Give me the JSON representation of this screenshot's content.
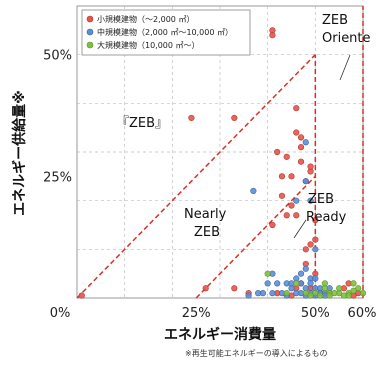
{
  "chart_data": {
    "type": "scatter",
    "xlabel": "エネルギー消費量",
    "ylabel": "エネルギー供給量※",
    "xlim": [
      0,
      60
    ],
    "ylim": [
      0,
      60
    ],
    "x_ticks": [
      {
        "value": 0,
        "label": "0%"
      },
      {
        "value": 25,
        "label": "25%"
      },
      {
        "value": 50,
        "label": "50%"
      },
      {
        "value": 60,
        "label": "60%"
      }
    ],
    "y_ticks": [
      {
        "value": 25,
        "label": "25%"
      },
      {
        "value": 50,
        "label": "50%"
      }
    ],
    "grid": true,
    "legend_position": "top-left",
    "zones": [
      {
        "label_lines": [
          "ZEB",
          "Oriente"
        ]
      },
      {
        "label_lines": [
          "『ZEB』"
        ]
      },
      {
        "label_lines": [
          "Nearly",
          "ZEB"
        ]
      },
      {
        "label_lines": [
          "ZEB",
          "Ready"
        ]
      }
    ],
    "series": [
      {
        "name": "小規模建物（〜2,000 ㎡）",
        "color": "#e8534a",
        "points": [
          [
            33,
            37
          ],
          [
            24,
            37
          ],
          [
            41,
            55
          ],
          [
            41,
            54
          ],
          [
            46,
            39
          ],
          [
            46,
            34
          ],
          [
            47,
            33
          ],
          [
            47,
            31
          ],
          [
            42,
            30
          ],
          [
            44,
            29
          ],
          [
            47,
            28
          ],
          [
            49,
            26
          ],
          [
            43,
            25
          ],
          [
            45,
            25
          ],
          [
            48,
            24
          ],
          [
            49,
            27
          ],
          [
            45,
            19
          ],
          [
            46,
            17
          ],
          [
            44,
            17
          ],
          [
            41,
            15
          ],
          [
            43,
            21
          ],
          [
            50,
            16
          ],
          [
            50,
            12
          ],
          [
            48,
            10
          ],
          [
            49,
            11
          ],
          [
            48,
            7
          ],
          [
            50,
            5
          ],
          [
            47,
            3
          ],
          [
            49,
            2
          ],
          [
            51,
            1
          ],
          [
            27,
            2
          ],
          [
            36,
            1
          ],
          [
            33,
            2
          ],
          [
            42,
            1
          ],
          [
            53,
            1
          ],
          [
            56,
            2
          ],
          [
            58,
            0.5
          ],
          [
            59,
            1
          ],
          [
            57,
            3
          ],
          [
            1,
            0.5
          ],
          [
            46,
            2
          ],
          [
            45,
            0.5
          ]
        ]
      },
      {
        "name": "中規模建物（2,000 ㎡〜10,000 ㎡）",
        "color": "#5b8ed6",
        "points": [
          [
            37,
            22
          ],
          [
            48,
            24
          ],
          [
            46,
            20
          ],
          [
            49,
            20
          ],
          [
            50,
            10
          ],
          [
            48,
            6
          ],
          [
            46,
            4
          ],
          [
            47,
            1
          ],
          [
            48,
            2
          ],
          [
            49,
            1
          ],
          [
            50,
            2
          ],
          [
            49,
            4
          ],
          [
            47,
            5
          ],
          [
            44,
            3
          ],
          [
            45,
            2
          ],
          [
            43,
            1
          ],
          [
            41,
            1
          ],
          [
            40,
            3
          ],
          [
            38,
            1
          ],
          [
            36,
            0.5
          ],
          [
            48,
            32
          ],
          [
            47,
            3
          ],
          [
            46,
            1
          ],
          [
            48,
            0.5
          ],
          [
            50,
            4
          ],
          [
            51,
            2
          ],
          [
            51,
            1
          ],
          [
            49,
            3
          ],
          [
            50,
            0.5
          ],
          [
            41,
            5
          ],
          [
            42,
            3
          ],
          [
            44,
            0.5
          ],
          [
            52,
            1
          ],
          [
            52,
            0.5
          ],
          [
            53,
            2
          ],
          [
            45,
            3
          ],
          [
            39,
            1
          ]
        ]
      },
      {
        "name": "大規模建物（10,000 ㎡〜）",
        "color": "#7fbf3f",
        "points": [
          [
            40,
            5
          ],
          [
            48,
            1
          ],
          [
            50,
            1
          ],
          [
            52,
            3
          ],
          [
            53,
            1
          ],
          [
            55,
            1
          ],
          [
            57,
            1
          ],
          [
            59,
            2
          ],
          [
            58,
            3
          ],
          [
            56,
            0.5
          ],
          [
            49,
            0.5
          ],
          [
            51,
            0.5
          ],
          [
            54,
            1
          ],
          [
            44,
            1
          ],
          [
            46,
            3
          ],
          [
            52,
            2
          ],
          [
            55,
            2
          ],
          [
            58,
            1.5
          ],
          [
            60,
            1
          ],
          [
            57,
            0.5
          ],
          [
            53,
            0.5
          ]
        ]
      }
    ]
  },
  "footnote": "※再生可能エネルギーの導入によるもの"
}
